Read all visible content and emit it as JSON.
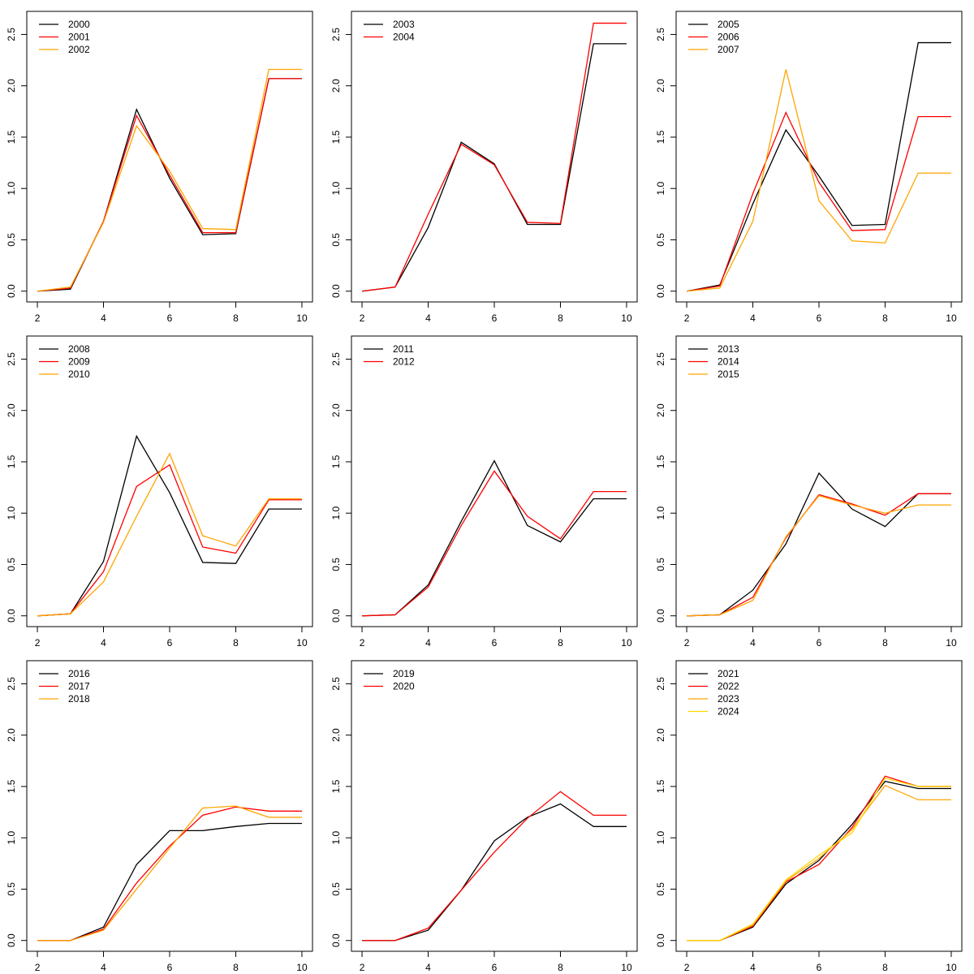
{
  "chart_data": [
    {
      "type": "line",
      "x": [
        2,
        3,
        4,
        5,
        6,
        7,
        8,
        9,
        10
      ],
      "xlim": [
        1.68,
        10.32
      ],
      "ylim": [
        -0.105,
        2.725
      ],
      "xticks": [
        2,
        4,
        6,
        8,
        10
      ],
      "yticks": [
        {
          "value": 0,
          "label": "0.0"
        },
        0.5,
        {
          "value": 1,
          "label": "1.0"
        },
        1.5,
        {
          "value": 2,
          "label": "2.0"
        },
        2.5
      ],
      "legend": "top-left",
      "series": [
        {
          "name": "2000",
          "color": "#000000",
          "values": [
            0,
            0.02,
            0.68,
            1.77,
            1.1,
            0.55,
            0.56,
            2.07,
            2.07
          ]
        },
        {
          "name": "2001",
          "color": "#ff0000",
          "values": [
            0,
            0.03,
            0.68,
            1.71,
            1.13,
            0.57,
            0.57,
            2.07,
            2.07
          ]
        },
        {
          "name": "2002",
          "color": "#ffa500",
          "values": [
            0,
            0.04,
            0.67,
            1.61,
            1.17,
            0.61,
            0.6,
            2.16,
            2.16
          ]
        }
      ]
    },
    {
      "type": "line",
      "x": [
        2,
        3,
        4,
        5,
        6,
        7,
        8,
        9,
        10
      ],
      "xlim": [
        1.68,
        10.32
      ],
      "ylim": [
        -0.105,
        2.725
      ],
      "xticks": [
        2,
        4,
        6,
        8,
        10
      ],
      "yticks": [
        {
          "value": 0,
          "label": "0.0"
        },
        0.5,
        {
          "value": 1,
          "label": "1.0"
        },
        1.5,
        {
          "value": 2,
          "label": "2.0"
        },
        2.5
      ],
      "legend": "top-left",
      "series": [
        {
          "name": "2003",
          "color": "#000000",
          "values": [
            0,
            0.04,
            0.62,
            1.45,
            1.24,
            0.65,
            0.65,
            2.41,
            2.41
          ]
        },
        {
          "name": "2004",
          "color": "#ff0000",
          "values": [
            0,
            0.04,
            0.75,
            1.43,
            1.23,
            0.67,
            0.66,
            2.61,
            2.61
          ]
        }
      ]
    },
    {
      "type": "line",
      "x": [
        2,
        3,
        4,
        5,
        6,
        7,
        8,
        9,
        10
      ],
      "xlim": [
        1.68,
        10.32
      ],
      "ylim": [
        -0.105,
        2.725
      ],
      "xticks": [
        2,
        4,
        6,
        8,
        10
      ],
      "yticks": [
        {
          "value": 0,
          "label": "0.0"
        },
        0.5,
        {
          "value": 1,
          "label": "1.0"
        },
        1.5,
        {
          "value": 2,
          "label": "2.0"
        },
        2.5
      ],
      "legend": "top-left",
      "series": [
        {
          "name": "2005",
          "color": "#000000",
          "values": [
            0,
            0.06,
            0.85,
            1.57,
            1.12,
            0.64,
            0.65,
            2.42,
            2.42
          ]
        },
        {
          "name": "2006",
          "color": "#ff0000",
          "values": [
            0,
            0.05,
            0.95,
            1.74,
            1.06,
            0.59,
            0.6,
            1.7,
            1.7
          ]
        },
        {
          "name": "2007",
          "color": "#ffa500",
          "values": [
            0,
            0.03,
            0.68,
            2.16,
            0.88,
            0.49,
            0.47,
            1.15,
            1.15
          ]
        }
      ]
    },
    {
      "type": "line",
      "x": [
        2,
        3,
        4,
        5,
        6,
        7,
        8,
        9,
        10
      ],
      "xlim": [
        1.68,
        10.32
      ],
      "ylim": [
        -0.105,
        2.725
      ],
      "xticks": [
        2,
        4,
        6,
        8,
        10
      ],
      "yticks": [
        {
          "value": 0,
          "label": "0.0"
        },
        0.5,
        {
          "value": 1,
          "label": "1.0"
        },
        1.5,
        {
          "value": 2,
          "label": "2.0"
        },
        2.5
      ],
      "legend": "top-left",
      "series": [
        {
          "name": "2008",
          "color": "#000000",
          "values": [
            0,
            0.02,
            0.53,
            1.75,
            1.2,
            0.52,
            0.51,
            1.04,
            1.04
          ]
        },
        {
          "name": "2009",
          "color": "#ff0000",
          "values": [
            0,
            0.02,
            0.43,
            1.26,
            1.47,
            0.67,
            0.61,
            1.13,
            1.13
          ]
        },
        {
          "name": "2010",
          "color": "#ffa500",
          "values": [
            0,
            0.02,
            0.33,
            0.97,
            1.58,
            0.78,
            0.68,
            1.14,
            1.14
          ]
        }
      ]
    },
    {
      "type": "line",
      "x": [
        2,
        3,
        4,
        5,
        6,
        7,
        8,
        9,
        10
      ],
      "xlim": [
        1.68,
        10.32
      ],
      "ylim": [
        -0.105,
        2.725
      ],
      "xticks": [
        2,
        4,
        6,
        8,
        10
      ],
      "yticks": [
        {
          "value": 0,
          "label": "0.0"
        },
        0.5,
        {
          "value": 1,
          "label": "1.0"
        },
        1.5,
        {
          "value": 2,
          "label": "2.0"
        },
        2.5
      ],
      "legend": "top-left",
      "series": [
        {
          "name": "2011",
          "color": "#000000",
          "values": [
            0,
            0.01,
            0.3,
            0.92,
            1.51,
            0.88,
            0.72,
            1.14,
            1.14
          ]
        },
        {
          "name": "2012",
          "color": "#ff0000",
          "values": [
            0,
            0.01,
            0.28,
            0.88,
            1.41,
            0.97,
            0.75,
            1.21,
            1.21
          ]
        }
      ]
    },
    {
      "type": "line",
      "x": [
        2,
        3,
        4,
        5,
        6,
        7,
        8,
        9,
        10
      ],
      "xlim": [
        1.68,
        10.32
      ],
      "ylim": [
        -0.105,
        2.725
      ],
      "xticks": [
        2,
        4,
        6,
        8,
        10
      ],
      "yticks": [
        {
          "value": 0,
          "label": "0.0"
        },
        0.5,
        {
          "value": 1,
          "label": "1.0"
        },
        1.5,
        {
          "value": 2,
          "label": "2.0"
        },
        2.5
      ],
      "legend": "top-left",
      "series": [
        {
          "name": "2013",
          "color": "#000000",
          "values": [
            0,
            0.01,
            0.25,
            0.7,
            1.39,
            1.04,
            0.87,
            1.19,
            1.19
          ]
        },
        {
          "name": "2014",
          "color": "#ff0000",
          "values": [
            0,
            0.01,
            0.18,
            0.76,
            1.18,
            1.09,
            0.98,
            1.19,
            1.19
          ]
        },
        {
          "name": "2015",
          "color": "#ffa500",
          "values": [
            0,
            0.01,
            0.15,
            0.77,
            1.17,
            1.08,
            1.0,
            1.08,
            1.08
          ]
        }
      ]
    },
    {
      "type": "line",
      "x": [
        2,
        3,
        4,
        5,
        6,
        7,
        8,
        9,
        10
      ],
      "xlim": [
        1.68,
        10.32
      ],
      "ylim": [
        -0.105,
        2.725
      ],
      "xticks": [
        2,
        4,
        6,
        8,
        10
      ],
      "yticks": [
        {
          "value": 0,
          "label": "0.0"
        },
        0.5,
        {
          "value": 1,
          "label": "1.0"
        },
        1.5,
        {
          "value": 2,
          "label": "2.0"
        },
        2.5
      ],
      "legend": "top-left",
      "series": [
        {
          "name": "2016",
          "color": "#000000",
          "values": [
            0,
            0,
            0.13,
            0.74,
            1.07,
            1.07,
            1.11,
            1.14,
            1.14
          ]
        },
        {
          "name": "2017",
          "color": "#ff0000",
          "values": [
            0,
            0,
            0.11,
            0.56,
            0.92,
            1.22,
            1.3,
            1.26,
            1.26
          ]
        },
        {
          "name": "2018",
          "color": "#ffa500",
          "values": [
            0,
            0,
            0.1,
            0.5,
            0.9,
            1.29,
            1.31,
            1.2,
            1.2
          ]
        }
      ]
    },
    {
      "type": "line",
      "x": [
        2,
        3,
        4,
        5,
        6,
        7,
        8,
        9,
        10
      ],
      "xlim": [
        1.68,
        10.32
      ],
      "ylim": [
        -0.105,
        2.725
      ],
      "xticks": [
        2,
        4,
        6,
        8,
        10
      ],
      "yticks": [
        {
          "value": 0,
          "label": "0.0"
        },
        0.5,
        {
          "value": 1,
          "label": "1.0"
        },
        1.5,
        {
          "value": 2,
          "label": "2.0"
        },
        2.5
      ],
      "legend": "top-left",
      "series": [
        {
          "name": "2019",
          "color": "#000000",
          "values": [
            0,
            0,
            0.1,
            0.49,
            0.97,
            1.2,
            1.33,
            1.11,
            1.11
          ]
        },
        {
          "name": "2020",
          "color": "#ff0000",
          "values": [
            0,
            0,
            0.12,
            0.49,
            0.86,
            1.19,
            1.45,
            1.22,
            1.22
          ]
        }
      ]
    },
    {
      "type": "line",
      "x": [
        2,
        3,
        4,
        5,
        6,
        7,
        8,
        9,
        10
      ],
      "xlim": [
        1.68,
        10.32
      ],
      "ylim": [
        -0.105,
        2.725
      ],
      "xticks": [
        2,
        4,
        6,
        8,
        10
      ],
      "yticks": [
        {
          "value": 0,
          "label": "0.0"
        },
        0.5,
        {
          "value": 1,
          "label": "1.0"
        },
        1.5,
        {
          "value": 2,
          "label": "2.0"
        },
        2.5
      ],
      "legend": "top-left",
      "series": [
        {
          "name": "2021",
          "color": "#000000",
          "values": [
            0,
            0,
            0.13,
            0.55,
            0.78,
            1.13,
            1.55,
            1.48,
            1.48
          ]
        },
        {
          "name": "2022",
          "color": "#ff0000",
          "values": [
            0,
            0,
            0.14,
            0.57,
            0.74,
            1.1,
            1.6,
            1.5,
            1.5
          ]
        },
        {
          "name": "2023",
          "color": "#ffa500",
          "values": [
            0,
            0,
            0.15,
            0.58,
            0.8,
            1.08,
            1.51,
            1.37,
            1.37
          ]
        },
        {
          "name": "2024",
          "color": "#ffd700",
          "values": [
            0,
            0,
            0.16,
            0.59,
            0.83,
            1.05,
            1.58,
            1.5,
            1.5
          ]
        }
      ]
    }
  ]
}
